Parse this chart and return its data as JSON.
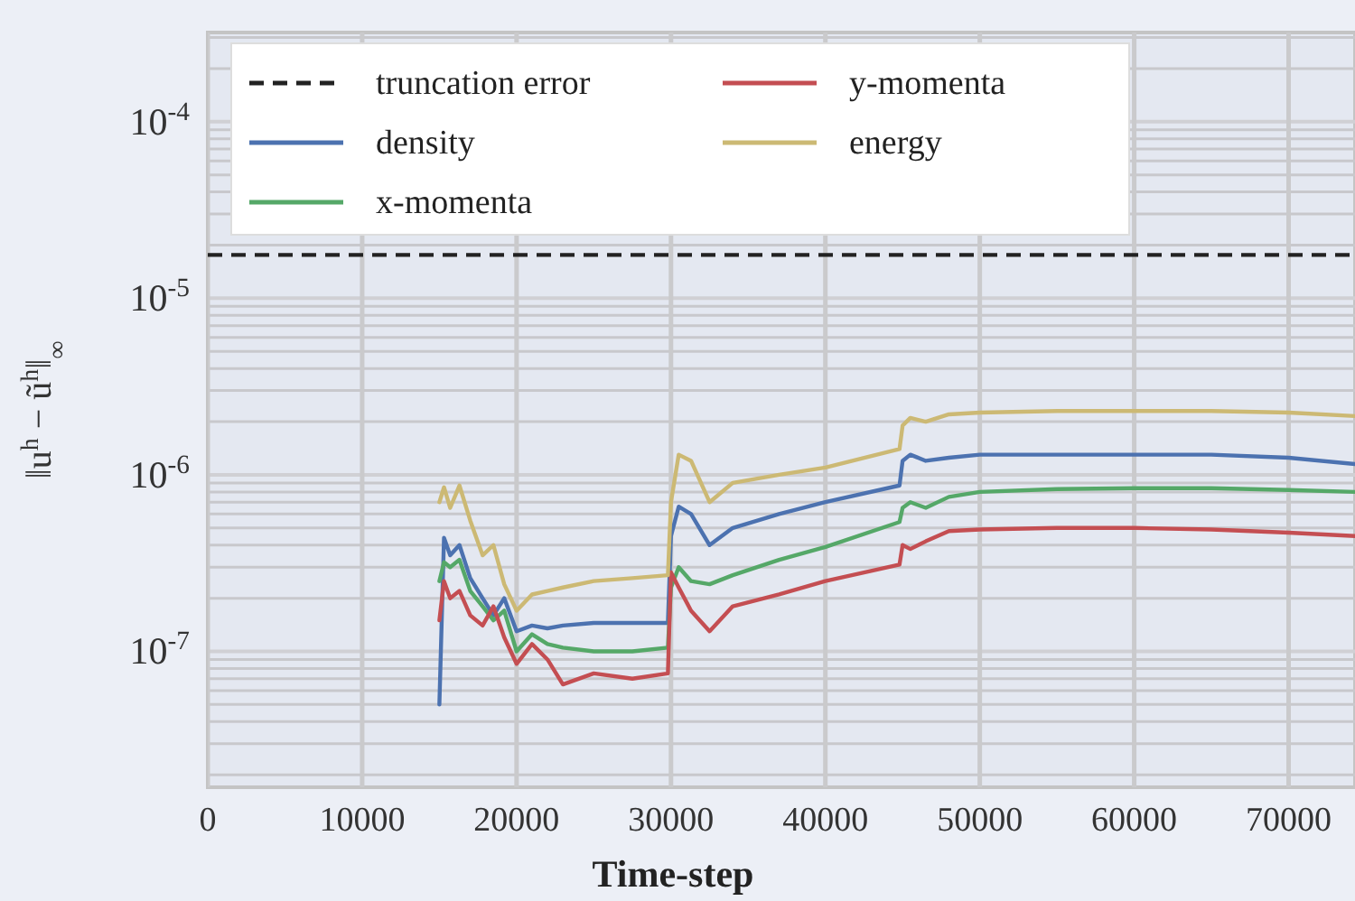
{
  "chart_data": {
    "type": "line",
    "xlabel": "Time-step",
    "ylabel": "‖u$^{h}$ − ũ$^{h}$‖$_{∞}$",
    "log": "y",
    "grid": true,
    "legend": "top left",
    "line_style": "solid",
    "xlim": [
      0,
      74300
    ],
    "xticks": [
      0,
      10000,
      20000,
      30000,
      40000,
      50000,
      60000,
      70000
    ],
    "ylim": [
      1.7e-08,
      0.00032
    ],
    "yticks": [
      {
        "value": 1e-07,
        "label": "10$^{-7}$"
      },
      {
        "value": 1e-06,
        "label": "10$^{-6}$"
      },
      {
        "value": 1e-05,
        "label": "10$^{-5}$"
      },
      {
        "value": 0.0001,
        "label": "10$^{-4}$"
      }
    ],
    "x": [
      15000,
      15300,
      15700,
      16300,
      17000,
      17800,
      18500,
      19200,
      20000,
      21000,
      22000,
      23000,
      25000,
      27500,
      29800,
      30000,
      30500,
      31300,
      32500,
      34000,
      37000,
      40000,
      44800,
      45000,
      45500,
      46500,
      48000,
      50000,
      55000,
      60000,
      65000,
      70000,
      74300
    ],
    "ref_lines": [
      {
        "axis": "y",
        "value": 1.76e-05,
        "label": "truncation error",
        "color": "#222222",
        "line_style": "dashed"
      }
    ],
    "series": [
      {
        "name": "density",
        "color": "#4c72b0",
        "values": [
          5e-08,
          4.4e-07,
          3.5e-07,
          4e-07,
          2.6e-07,
          2e-07,
          1.6e-07,
          2e-07,
          1.3e-07,
          1.4e-07,
          1.35e-07,
          1.4e-07,
          1.45e-07,
          1.45e-07,
          1.45e-07,
          4.5e-07,
          6.6e-07,
          6e-07,
          4e-07,
          5e-07,
          6e-07,
          7e-07,
          8.7e-07,
          1.2e-06,
          1.3e-06,
          1.2e-06,
          1.25e-06,
          1.3e-06,
          1.3e-06,
          1.3e-06,
          1.3e-06,
          1.25e-06,
          1.15e-06
        ]
      },
      {
        "name": "x-momenta",
        "color": "#55a868",
        "values": [
          2.5e-07,
          3.2e-07,
          3e-07,
          3.3e-07,
          2.2e-07,
          1.8e-07,
          1.5e-07,
          1.7e-07,
          1e-07,
          1.25e-07,
          1.1e-07,
          1.05e-07,
          1e-07,
          1e-07,
          1.05e-07,
          2.3e-07,
          3e-07,
          2.5e-07,
          2.4e-07,
          2.7e-07,
          3.3e-07,
          3.9e-07,
          5.4e-07,
          6.5e-07,
          7e-07,
          6.5e-07,
          7.5e-07,
          8e-07,
          8.3e-07,
          8.4e-07,
          8.4e-07,
          8.2e-07,
          8e-07
        ]
      },
      {
        "name": "y-momenta",
        "color": "#c44e52",
        "values": [
          1.5e-07,
          2.5e-07,
          2e-07,
          2.2e-07,
          1.6e-07,
          1.4e-07,
          1.8e-07,
          1.2e-07,
          8.5e-08,
          1.1e-07,
          9e-08,
          6.5e-08,
          7.5e-08,
          7e-08,
          7.5e-08,
          2.8e-07,
          2.3e-07,
          1.7e-07,
          1.3e-07,
          1.8e-07,
          2.1e-07,
          2.5e-07,
          3.1e-07,
          4e-07,
          3.8e-07,
          4.2e-07,
          4.8e-07,
          4.9e-07,
          5e-07,
          5e-07,
          4.9e-07,
          4.7e-07,
          4.5e-07
        ]
      },
      {
        "name": "energy",
        "color": "#ccb974",
        "values": [
          7e-07,
          8.5e-07,
          6.5e-07,
          8.7e-07,
          5.5e-07,
          3.5e-07,
          4e-07,
          2.4e-07,
          1.7e-07,
          2.1e-07,
          2.2e-07,
          2.3e-07,
          2.5e-07,
          2.6e-07,
          2.7e-07,
          7e-07,
          1.3e-06,
          1.2e-06,
          7e-07,
          9e-07,
          1e-06,
          1.1e-06,
          1.4e-06,
          1.9e-06,
          2.1e-06,
          2e-06,
          2.2e-06,
          2.25e-06,
          2.3e-06,
          2.3e-06,
          2.3e-06,
          2.25e-06,
          2.15e-06
        ]
      }
    ]
  }
}
